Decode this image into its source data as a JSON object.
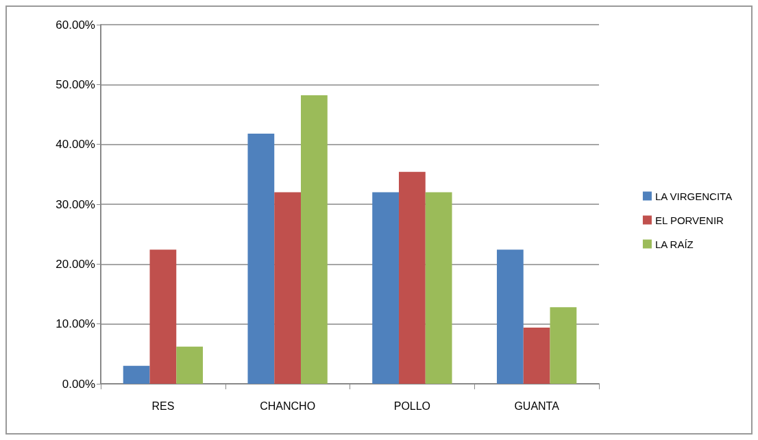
{
  "chart_data": {
    "type": "bar",
    "categories": [
      "RES",
      "CHANCHO",
      "POLLO",
      "GUANTA"
    ],
    "series": [
      {
        "name": "LA VIRGENCITA",
        "color": "#4f81bd",
        "values": [
          3.0,
          41.8,
          32.0,
          22.4
        ]
      },
      {
        "name": "EL PORVENIR",
        "color": "#c0504d",
        "values": [
          22.4,
          32.0,
          35.4,
          9.4
        ]
      },
      {
        "name": "LA RAÍZ",
        "color": "#9bbb59",
        "values": [
          6.2,
          48.2,
          32.0,
          12.8
        ]
      }
    ],
    "ylim": [
      0,
      60
    ],
    "yticks": [
      {
        "value": 0,
        "label": "0.00%"
      },
      {
        "value": 10,
        "label": "10.00%"
      },
      {
        "value": 20,
        "label": "20.00%"
      },
      {
        "value": 30,
        "label": "30.00%"
      },
      {
        "value": 40,
        "label": "40.00%"
      },
      {
        "value": 50,
        "label": "50.00%"
      },
      {
        "value": 60,
        "label": "60.00%"
      }
    ],
    "grid": "y",
    "legend": "right"
  }
}
